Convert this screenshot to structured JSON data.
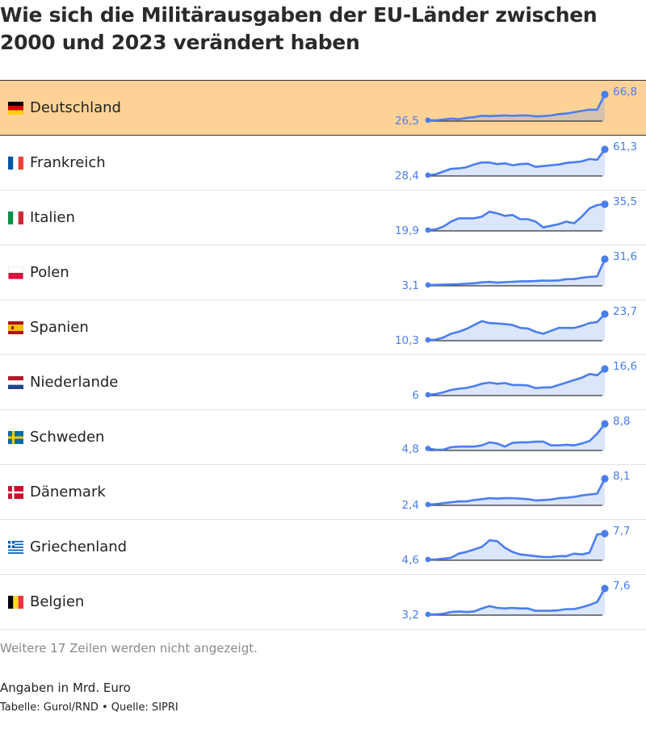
{
  "title": "Wie sich die Militärausgaben der EU-Länder zwischen 2000 und 2023 verändert haben",
  "footer": {
    "more_rows": "Weitere 17 Zeilen werden nicht angezeigt.",
    "unit_note": "Angaben in Mrd. Euro",
    "source": "Tabelle: Gurol/RND • Quelle: SIPRI"
  },
  "colors": {
    "line": "#4a7ef0",
    "area": "#dbe6fb",
    "highlight_bg": "#fed296",
    "highlight_area": "#d5c3ae"
  },
  "chart_data": {
    "type": "table",
    "x": [
      2000,
      2001,
      2002,
      2003,
      2004,
      2005,
      2006,
      2007,
      2008,
      2009,
      2010,
      2011,
      2012,
      2013,
      2014,
      2015,
      2016,
      2017,
      2018,
      2019,
      2020,
      2021,
      2022,
      2023
    ],
    "series": [
      {
        "name": "Deutschland",
        "flag": "de",
        "highlight": true,
        "first_label": "26,5",
        "last_label": "66,8",
        "values": [
          26.5,
          26.4,
          27.5,
          29.0,
          28.0,
          30.0,
          31.5,
          33.5,
          33.0,
          33.5,
          34.0,
          33.5,
          34.0,
          34.0,
          32.5,
          33.0,
          34.0,
          36.0,
          37.0,
          39.0,
          41.0,
          43.0,
          43.0,
          66.8
        ]
      },
      {
        "name": "Frankreich",
        "flag": "fr",
        "highlight": false,
        "first_label": "28,4",
        "last_label": "61,3",
        "values": [
          28.4,
          29.5,
          33.0,
          36.5,
          37.0,
          38.5,
          42.0,
          44.5,
          44.5,
          42.5,
          43.5,
          41.0,
          42.5,
          43.0,
          39.0,
          40.0,
          41.0,
          42.0,
          44.0,
          45.0,
          46.0,
          49.0,
          48.0,
          61.3
        ]
      },
      {
        "name": "Italien",
        "flag": "it",
        "highlight": false,
        "first_label": "19,9",
        "last_label": "35,5",
        "values": [
          19.9,
          20.3,
          22.0,
          25.0,
          27.0,
          27.0,
          27.0,
          28.0,
          31.0,
          30.0,
          28.5,
          29.0,
          26.5,
          26.5,
          25.0,
          21.5,
          22.5,
          23.5,
          25.0,
          24.0,
          28.0,
          33.0,
          35.0,
          35.5
        ]
      },
      {
        "name": "Polen",
        "flag": "pl",
        "highlight": false,
        "first_label": "3,1",
        "last_label": "31,6",
        "values": [
          3.1,
          3.3,
          3.5,
          3.7,
          4.0,
          4.5,
          5.0,
          6.0,
          6.5,
          5.7,
          6.2,
          6.7,
          7.0,
          7.2,
          7.5,
          8.0,
          7.8,
          8.2,
          9.5,
          9.6,
          11.0,
          12.0,
          12.5,
          31.6
        ]
      },
      {
        "name": "Spanien",
        "flag": "es",
        "highlight": false,
        "first_label": "10,3",
        "last_label": "23,7",
        "values": [
          10.3,
          10.4,
          11.5,
          13.5,
          14.5,
          16.0,
          18.0,
          20.0,
          19.0,
          18.8,
          18.5,
          18.0,
          16.5,
          16.2,
          14.5,
          13.5,
          15.0,
          16.5,
          16.5,
          16.5,
          17.5,
          19.0,
          19.5,
          23.7
        ]
      },
      {
        "name": "Niederlande",
        "flag": "nl",
        "highlight": false,
        "first_label": "6",
        "last_label": "16,6",
        "values": [
          6.0,
          6.3,
          7.0,
          8.0,
          8.5,
          8.8,
          9.5,
          10.5,
          11.0,
          10.5,
          10.8,
          10.0,
          10.0,
          9.8,
          8.7,
          9.0,
          9.0,
          10.0,
          11.0,
          12.0,
          13.0,
          14.5,
          14.0,
          16.6
        ]
      },
      {
        "name": "Schweden",
        "flag": "se",
        "highlight": false,
        "first_label": "4,8",
        "last_label": "8,8",
        "values": [
          4.8,
          4.6,
          4.6,
          5.0,
          5.1,
          5.1,
          5.1,
          5.3,
          5.8,
          5.6,
          5.1,
          5.7,
          5.8,
          5.8,
          5.9,
          5.9,
          5.3,
          5.3,
          5.4,
          5.3,
          5.6,
          6.0,
          7.2,
          8.8
        ]
      },
      {
        "name": "Dänemark",
        "flag": "dk",
        "highlight": false,
        "first_label": "2,4",
        "last_label": "8,1",
        "values": [
          2.4,
          2.5,
          2.7,
          2.9,
          3.1,
          3.1,
          3.4,
          3.6,
          3.8,
          3.7,
          3.8,
          3.8,
          3.7,
          3.6,
          3.3,
          3.4,
          3.5,
          3.8,
          3.9,
          4.1,
          4.4,
          4.6,
          4.8,
          8.1
        ]
      },
      {
        "name": "Griechenland",
        "flag": "gr",
        "highlight": false,
        "first_label": "4,6",
        "last_label": "7,7",
        "values": [
          4.6,
          4.6,
          4.7,
          4.8,
          5.3,
          5.5,
          5.8,
          6.1,
          6.9,
          6.8,
          6.0,
          5.5,
          5.2,
          5.1,
          5.0,
          4.9,
          4.9,
          5.0,
          5.0,
          5.3,
          5.2,
          5.4,
          7.6,
          7.7
        ]
      },
      {
        "name": "Belgien",
        "flag": "be",
        "highlight": false,
        "first_label": "3,2",
        "last_label": "7,6",
        "values": [
          3.2,
          3.2,
          3.3,
          3.6,
          3.7,
          3.6,
          3.7,
          4.2,
          4.6,
          4.3,
          4.2,
          4.3,
          4.2,
          4.2,
          3.8,
          3.8,
          3.8,
          3.9,
          4.1,
          4.1,
          4.4,
          4.8,
          5.3,
          7.6
        ]
      }
    ]
  }
}
